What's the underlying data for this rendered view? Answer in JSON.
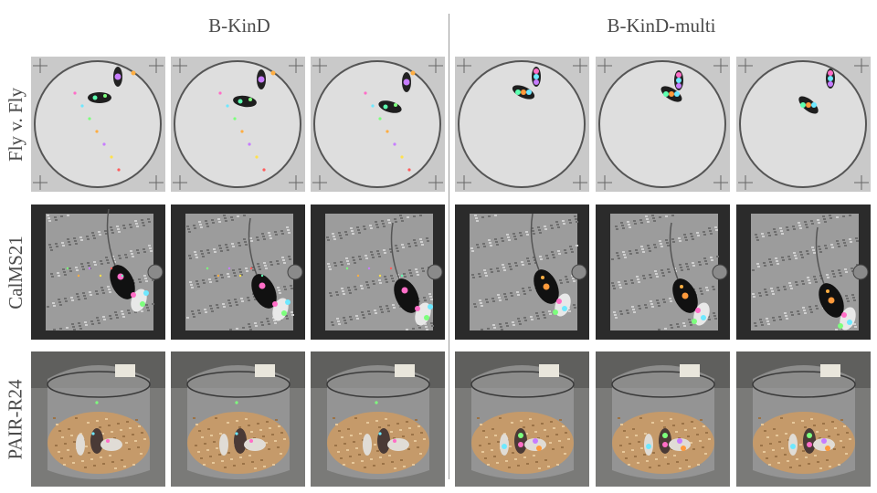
{
  "group_titles": [
    "B-KinD",
    "B-KinD-multi"
  ],
  "row_labels": [
    "Fly v. Fly",
    "CalMS21",
    "PAIR-R24"
  ]
}
